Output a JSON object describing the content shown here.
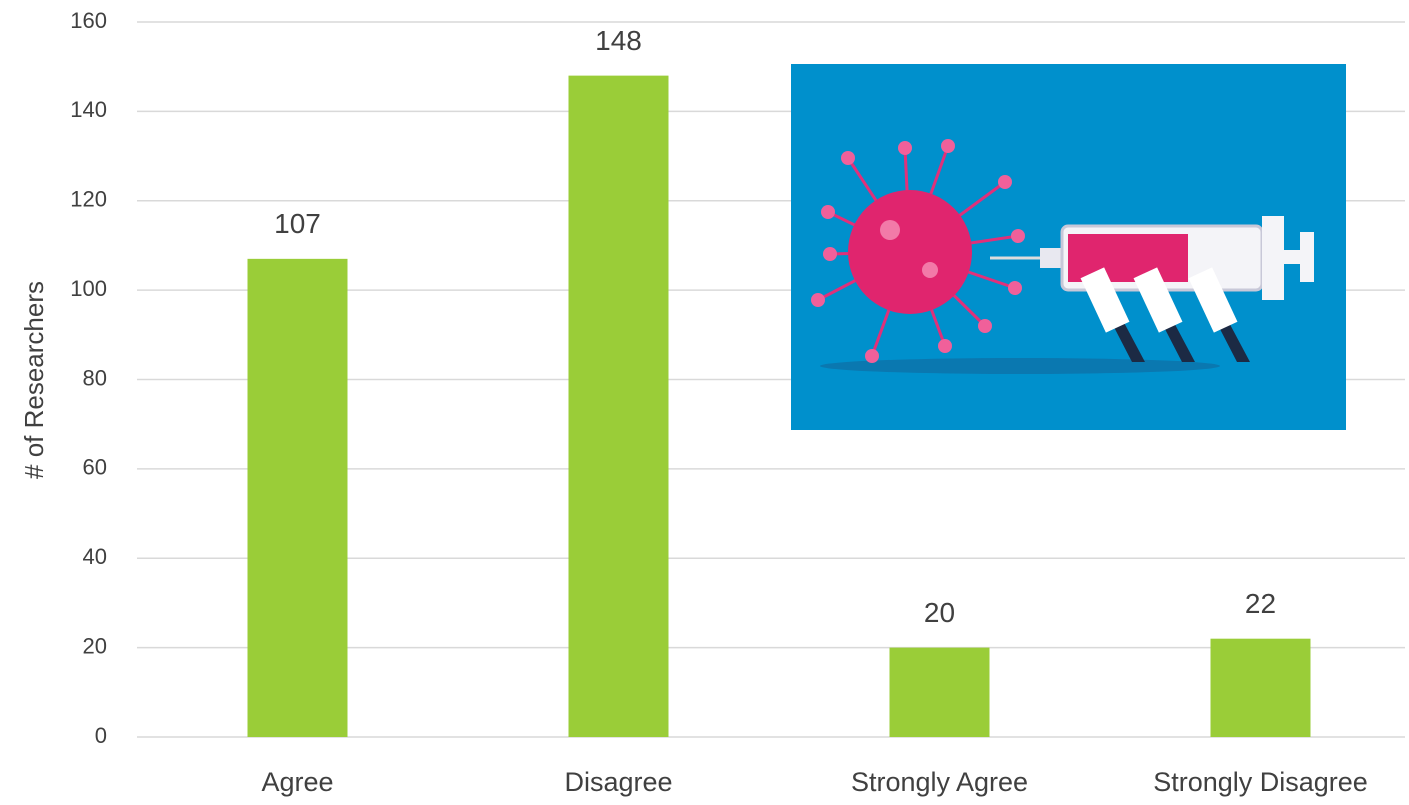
{
  "chart_data": {
    "type": "bar",
    "y_label": "# of Researchers",
    "categories": [
      "Agree",
      "Disagree",
      "Strongly Agree",
      "Strongly Disagree"
    ],
    "values": [
      107,
      148,
      20,
      22
    ],
    "color": "#9acd38",
    "ylim": [
      0,
      160
    ],
    "yticks": [
      0,
      20,
      40,
      60,
      80,
      100,
      120,
      140,
      160
    ],
    "grid": true
  }
}
